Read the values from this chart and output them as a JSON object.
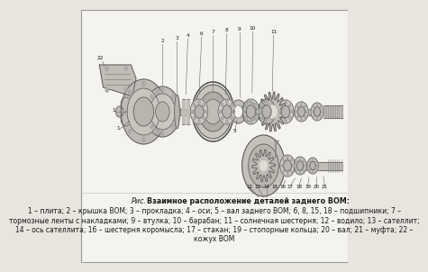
{
  "bg_color": "#e8e4de",
  "page_color": "#f5f3ef",
  "border_color": "#999999",
  "text_color": "#1a1a1a",
  "diagram_bg": "#ede9e3",
  "line_color": "#555555",
  "part_color": "#888888",
  "caption_title_bold": "Взаимное расположение деталей заднего ВОМ:",
  "caption_label": "Рис.",
  "caption_lines": [
    "1 – плита; 2 – крышка ВОМ; 3 – прокладка; 4 – оси; 5 – вал заднего ВОМ; 6, 8, 15, 18 – подшипники; 7 –",
    "тормозные ленты с накладками; 9 – втулка; 10 – барабан; 11 – солнечная шестерня; 12 – водило; 13 – сателлит;",
    "14 – ось сателлита; 16 – шестерня коромысла; 17 – стакан; 19 – стопорные кольца; 20 – вал; 21 – муфта; 22 –",
    "кожух ВОМ"
  ],
  "caption_fontsize": 5.5,
  "label_fontsize": 5.5,
  "title_fontsize": 5.8,
  "fig_label_fontsize": 5.8
}
